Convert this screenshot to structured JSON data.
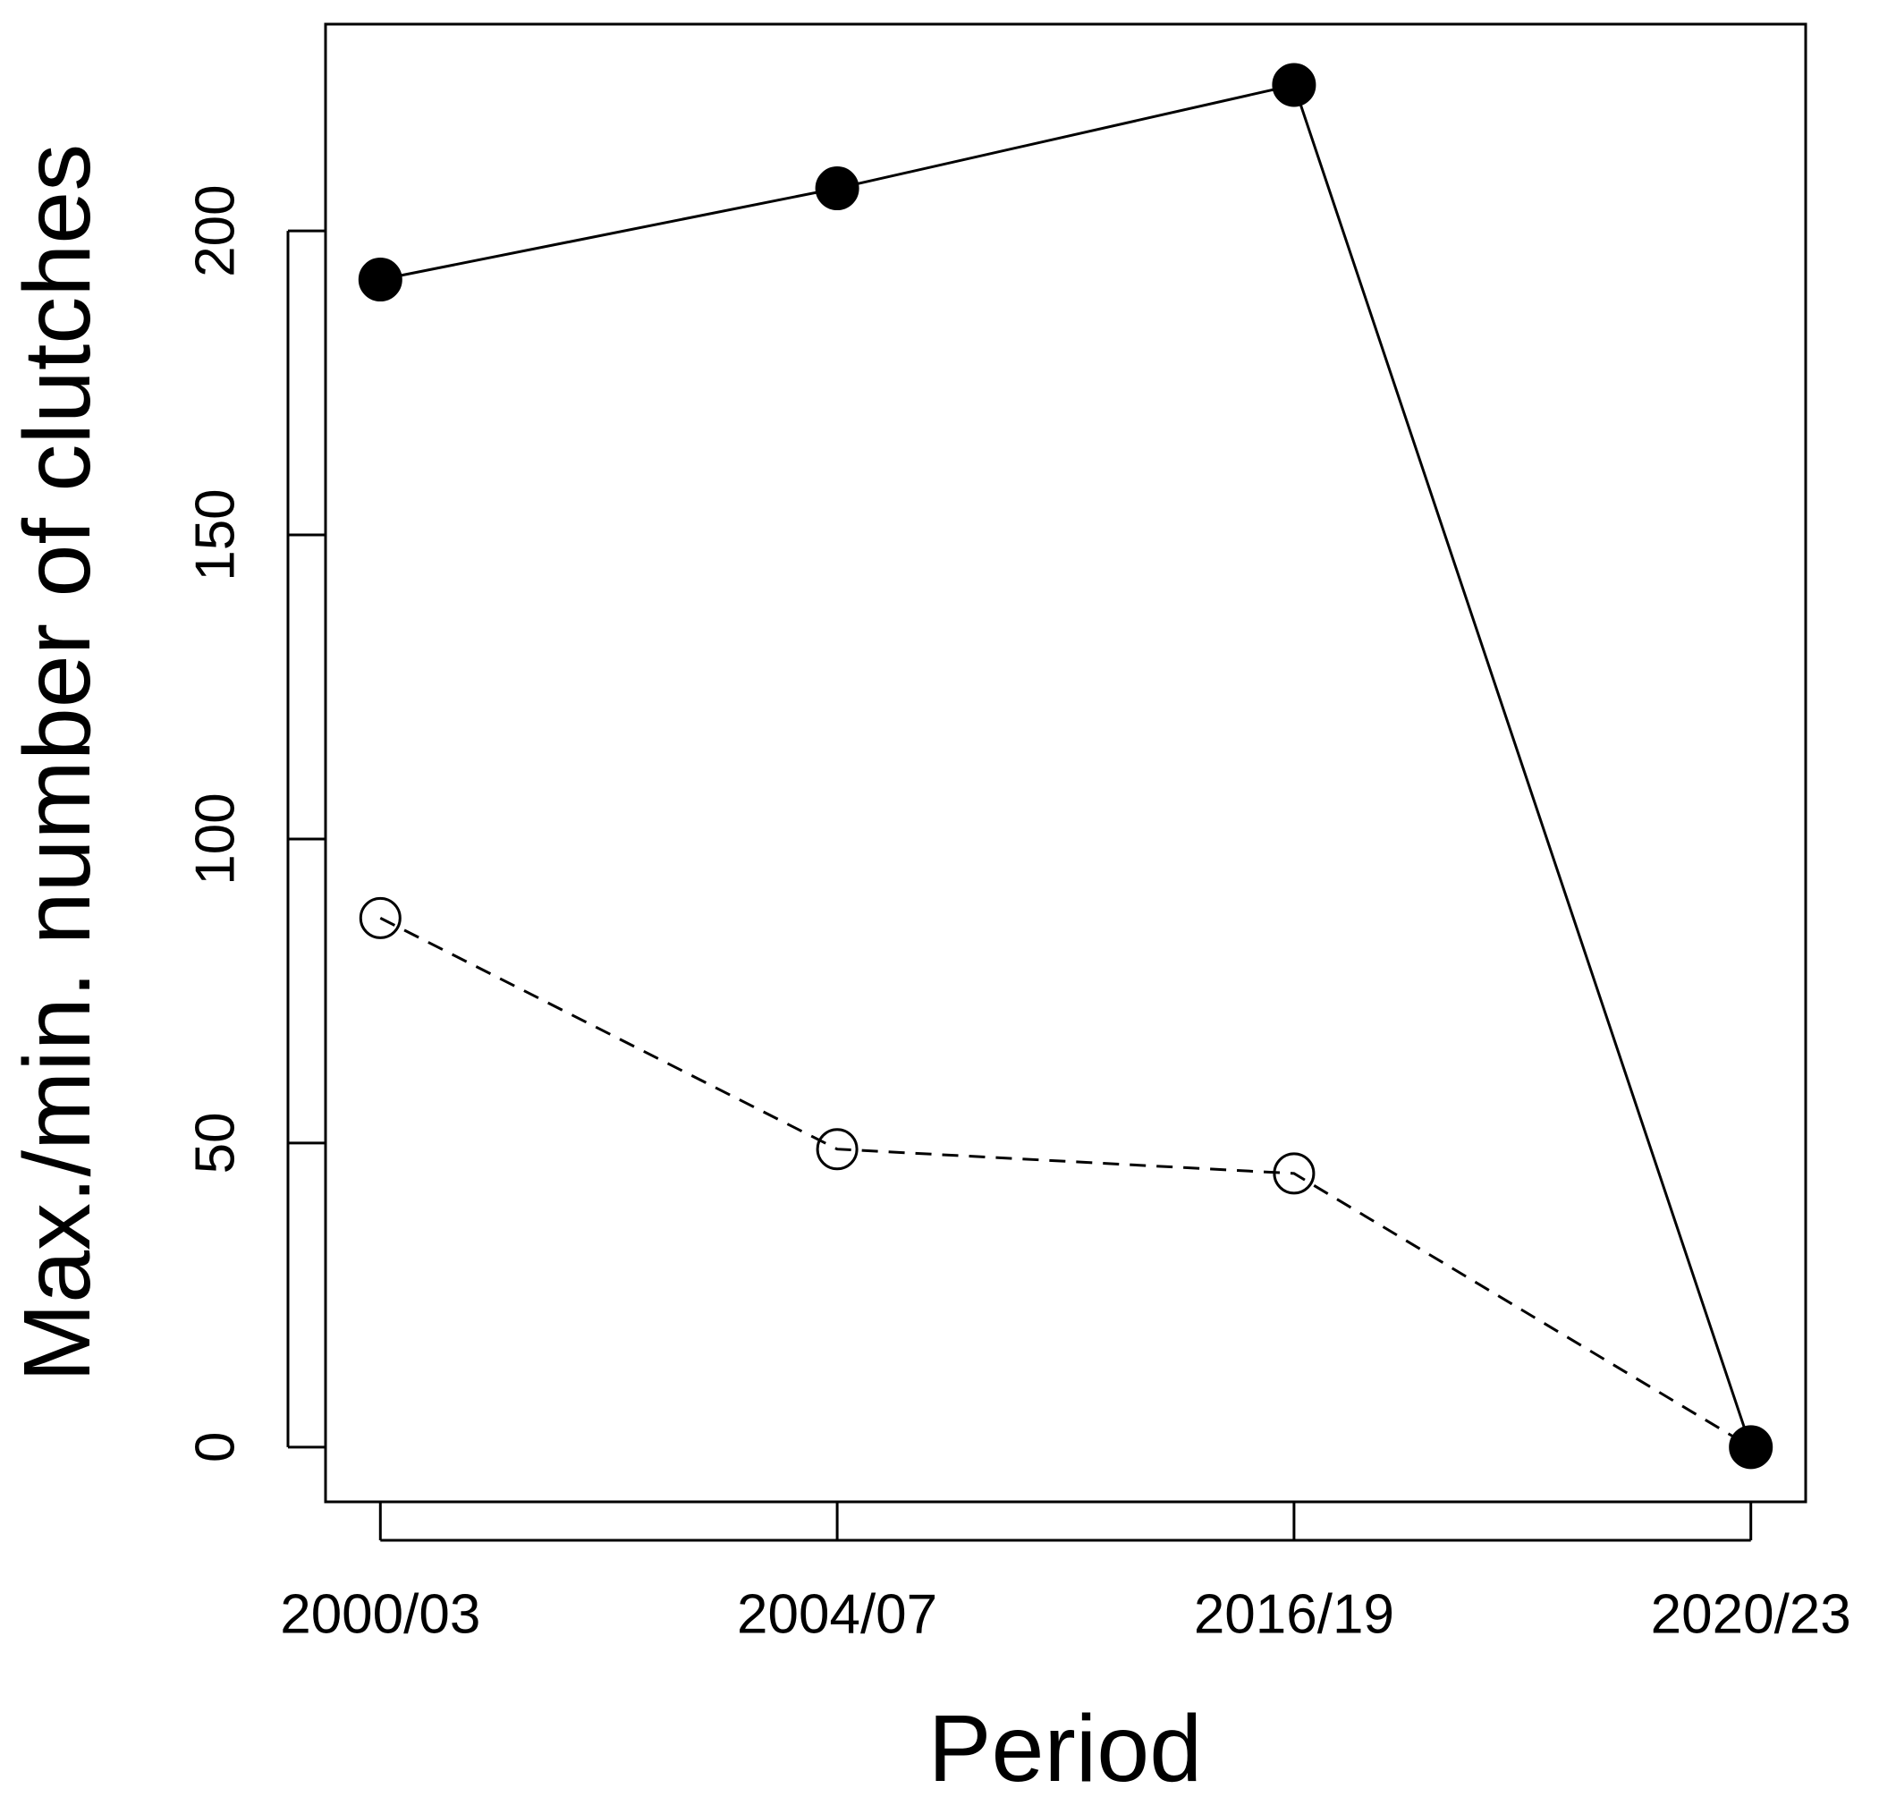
{
  "chart_data": {
    "type": "line",
    "x_label": "Period",
    "y_label": "Max./min. number of clutches",
    "categories": [
      "2000/03",
      "2004/07",
      "2016/19",
      "2020/23"
    ],
    "series": [
      {
        "color": "#000000",
        "line_style": "solid",
        "marker": "filled",
        "values": [
          192,
          207,
          224,
          0
        ]
      },
      {
        "color": "#000000",
        "line_style": "dashed",
        "marker": "open",
        "values": [
          87,
          49,
          45,
          0
        ]
      }
    ],
    "ylim": [
      -9,
      234
    ],
    "yticks": [
      0,
      50,
      100,
      150,
      200
    ],
    "grid": false
  }
}
